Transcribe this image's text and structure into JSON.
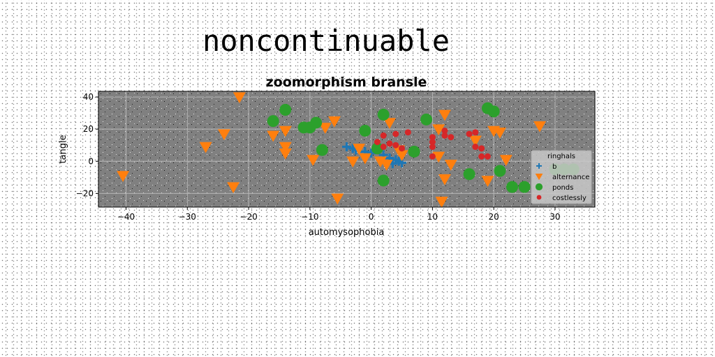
{
  "figure": {
    "suptitle": "noncontinuable"
  },
  "chart_data": {
    "type": "scatter",
    "title": "zoomorphism bransle",
    "xlabel": "automysophobia",
    "ylabel": "tangle",
    "xlim": [
      -44.5,
      36.5
    ],
    "ylim": [
      -28.5,
      43.5
    ],
    "xticks": [
      -40,
      -30,
      -20,
      -10,
      0,
      10,
      20,
      30
    ],
    "yticks": [
      -20,
      0,
      20,
      40
    ],
    "grid": true,
    "legend": {
      "title": "ringhals",
      "placement": "lower right"
    },
    "colors": {
      "b": "#1f77b4",
      "alternance": "#ff7f0e",
      "ponds": "#2ca02c",
      "costlessly": "#d62728",
      "axes_bg": "#808080"
    },
    "series": [
      {
        "name": "b",
        "marker": "plus",
        "points": [
          [
            -4,
            9
          ],
          [
            -3,
            8
          ],
          [
            -2.5,
            7
          ],
          [
            -1,
            6
          ],
          [
            0,
            5
          ],
          [
            2,
            4
          ],
          [
            3,
            2
          ],
          [
            4,
            1
          ],
          [
            4.5,
            0
          ],
          [
            5,
            -1
          ],
          [
            3.5,
            -1.5
          ]
        ]
      },
      {
        "name": "alternance",
        "marker": "triangle_down",
        "points": [
          [
            -21.5,
            40
          ],
          [
            -40.5,
            -9
          ],
          [
            -27,
            9
          ],
          [
            -24,
            17
          ],
          [
            -22.5,
            -16
          ],
          [
            -16,
            16
          ],
          [
            -14,
            19
          ],
          [
            -14,
            9
          ],
          [
            -14,
            5
          ],
          [
            -9.5,
            1
          ],
          [
            -7.5,
            21
          ],
          [
            -6,
            25
          ],
          [
            -5.5,
            -23
          ],
          [
            -3,
            0
          ],
          [
            -2,
            8
          ],
          [
            -1,
            2
          ],
          [
            1.5,
            0
          ],
          [
            2.5,
            -2
          ],
          [
            3,
            24
          ],
          [
            4.5,
            7
          ],
          [
            5,
            4
          ],
          [
            11,
            20
          ],
          [
            11,
            3
          ],
          [
            11.5,
            -25
          ],
          [
            12,
            -11
          ],
          [
            12,
            29
          ],
          [
            13,
            -2
          ],
          [
            17,
            13
          ],
          [
            19,
            -12
          ],
          [
            20,
            19
          ],
          [
            21,
            18
          ],
          [
            22,
            1
          ],
          [
            27.5,
            22
          ]
        ]
      },
      {
        "name": "ponds",
        "marker": "circle",
        "points": [
          [
            -16,
            25
          ],
          [
            -14,
            32
          ],
          [
            -11,
            21
          ],
          [
            -10,
            21
          ],
          [
            -9,
            24
          ],
          [
            -8,
            7
          ],
          [
            -1,
            19
          ],
          [
            1,
            8
          ],
          [
            2,
            29
          ],
          [
            2,
            -12
          ],
          [
            7,
            6
          ],
          [
            9,
            26
          ],
          [
            16,
            -8
          ],
          [
            19,
            33
          ],
          [
            20,
            31
          ],
          [
            21,
            -6
          ],
          [
            23,
            -16
          ],
          [
            25,
            -16
          ],
          [
            30,
            -5
          ],
          [
            31.5,
            -5
          ],
          [
            33,
            -5
          ]
        ]
      },
      {
        "name": "costlessly",
        "marker": "small_circle",
        "points": [
          [
            1,
            12
          ],
          [
            2,
            16
          ],
          [
            2,
            9
          ],
          [
            3,
            11
          ],
          [
            4,
            17
          ],
          [
            4,
            10
          ],
          [
            5,
            8
          ],
          [
            6,
            18
          ],
          [
            10,
            15
          ],
          [
            10,
            12
          ],
          [
            10,
            9
          ],
          [
            10,
            3
          ],
          [
            12,
            19
          ],
          [
            12,
            16
          ],
          [
            13,
            15
          ],
          [
            16,
            17
          ],
          [
            17,
            18
          ],
          [
            17,
            9
          ],
          [
            18,
            8
          ],
          [
            18,
            3
          ],
          [
            19,
            3
          ]
        ]
      }
    ]
  }
}
